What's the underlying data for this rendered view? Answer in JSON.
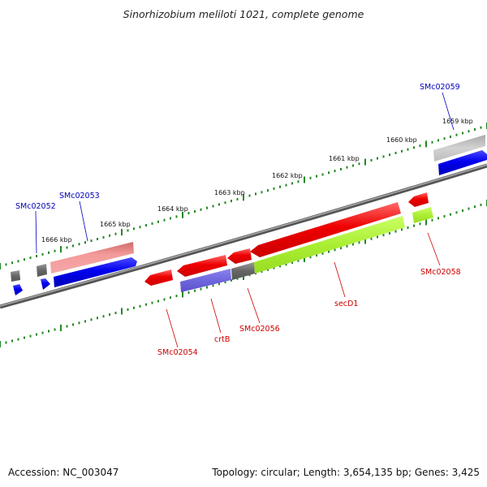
{
  "title": "Sinorhizobium meliloti 1021, complete genome",
  "footer": {
    "accession": "Accession: NC_003047",
    "summary": "Topology: circular; Length: 3,654,135 bp; Genes: 3,425"
  },
  "colors": {
    "backbone": "#7a7a7a",
    "tick": "#228822",
    "label_forward": "#0000bb",
    "label_reverse": "#cc0000"
  },
  "kbp_labels": [
    "1659 kbp",
    "1660 kbp",
    "1661 kbp",
    "1662 kbp",
    "1663 kbp",
    "1664 kbp",
    "1665 kbp",
    "1666 kbp"
  ],
  "gene_labels": {
    "SMc02052": "SMc02052",
    "SMc02053": "SMc02053",
    "SMc02059": "SMc02059",
    "SMc02054": "SMc02054",
    "crtB": "crtB",
    "SMc02056": "SMc02056",
    "secD1": "secD1",
    "SMc02058": "SMc02058"
  }
}
